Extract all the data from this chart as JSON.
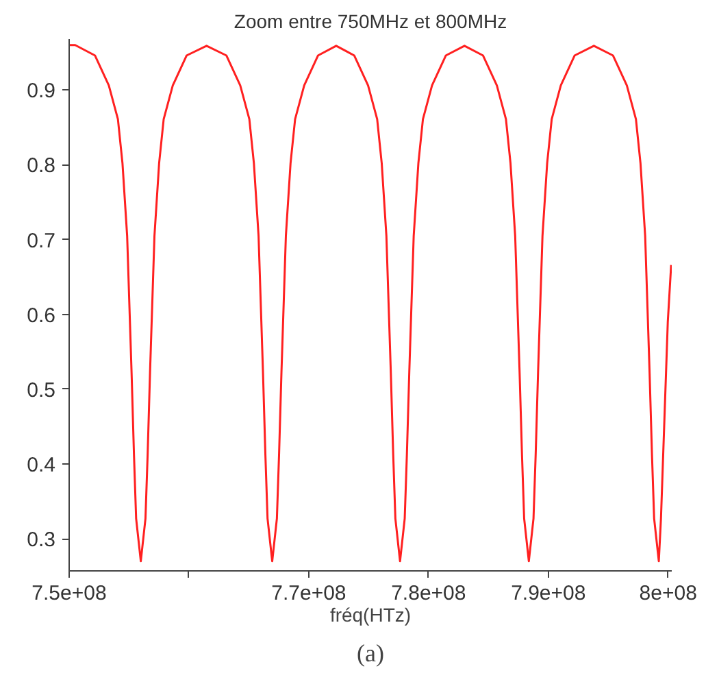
{
  "chart_data": {
    "type": "line",
    "title": "Zoom entre 750MHz et 800MHz",
    "xlabel": "fréq(HTz)",
    "annotations": [
      "(a)"
    ],
    "x": [
      750000000.0,
      750500000.0,
      752160000.0,
      753310000.0,
      754070000.0,
      754450000.0,
      754840000.0,
      755210000.0,
      755410000.0,
      755590000.0,
      755980000.0,
      756370000.0,
      756550000.0,
      756750000.0,
      757120000.0,
      757510000.0,
      757890000.0,
      758650000.0,
      759800000.0,
      761470000.0,
      763130000.0,
      764280000.0,
      765040000.0,
      765420000.0,
      765810000.0,
      766180000.0,
      766380000.0,
      766560000.0,
      766950000.0,
      767340000.0,
      767520000.0,
      767720000.0,
      768090000.0,
      768480000.0,
      768860000.0,
      769620000.0,
      770770000.0,
      772290000.0,
      773800000.0,
      774950000.0,
      775710000.0,
      776090000.0,
      776480000.0,
      776850000.0,
      777050000.0,
      777230000.0,
      777620000.0,
      778010000.0,
      778190000.0,
      778390000.0,
      778760000.0,
      779150000.0,
      779530000.0,
      780290000.0,
      781440000.0,
      783000000.0,
      784550000.0,
      785700000.0,
      786460000.0,
      786840000.0,
      787230000.0,
      787600000.0,
      787800000.0,
      787980000.0,
      788370000.0,
      788760000.0,
      788940000.0,
      789140000.0,
      789510000.0,
      789900000.0,
      790280000.0,
      791040000.0,
      792190000.0,
      793800000.0,
      795400000.0,
      796550000.0,
      797310000.0,
      797690000.0,
      798080000.0,
      798450000.0,
      798650000.0,
      798830000.0,
      799220000.0,
      799400000.0,
      799710000.0,
      799970000.0,
      800250000.0
    ],
    "series": [
      {
        "color": "#ff2020",
        "values": [
          0.96,
          0.96,
          0.946,
          0.906,
          0.861,
          0.802,
          0.705,
          0.522,
          0.412,
          0.327,
          0.27,
          0.327,
          0.412,
          0.522,
          0.705,
          0.802,
          0.861,
          0.906,
          0.946,
          0.959,
          0.946,
          0.906,
          0.861,
          0.802,
          0.705,
          0.522,
          0.412,
          0.327,
          0.27,
          0.327,
          0.412,
          0.522,
          0.705,
          0.802,
          0.861,
          0.906,
          0.946,
          0.959,
          0.946,
          0.906,
          0.861,
          0.802,
          0.705,
          0.522,
          0.412,
          0.327,
          0.27,
          0.327,
          0.412,
          0.522,
          0.705,
          0.802,
          0.861,
          0.906,
          0.946,
          0.959,
          0.946,
          0.906,
          0.861,
          0.802,
          0.705,
          0.522,
          0.412,
          0.327,
          0.27,
          0.327,
          0.412,
          0.522,
          0.705,
          0.802,
          0.861,
          0.906,
          0.946,
          0.959,
          0.946,
          0.906,
          0.861,
          0.802,
          0.705,
          0.522,
          0.412,
          0.327,
          0.27,
          0.327,
          0.47,
          0.59,
          0.666
        ]
      }
    ],
    "xlim": [
      750000000.0,
      800300000.0
    ],
    "ylim": [
      0.257,
      0.968
    ],
    "xticks": [
      {
        "value": 750000000.0,
        "label": "7.5e+08"
      },
      {
        "value": 760000000.0,
        "label": null
      },
      {
        "value": 770000000.0,
        "label": "7.7e+08"
      },
      {
        "value": 780000000.0,
        "label": "7.8e+08"
      },
      {
        "value": 790000000.0,
        "label": "7.9e+08"
      },
      {
        "value": 800000000.0,
        "label": "8e+08"
      }
    ],
    "yticks": [
      0.3,
      0.4,
      0.5,
      0.6,
      0.7,
      0.8,
      0.9
    ],
    "grid": false,
    "line_style": "solid",
    "marker": "none"
  }
}
